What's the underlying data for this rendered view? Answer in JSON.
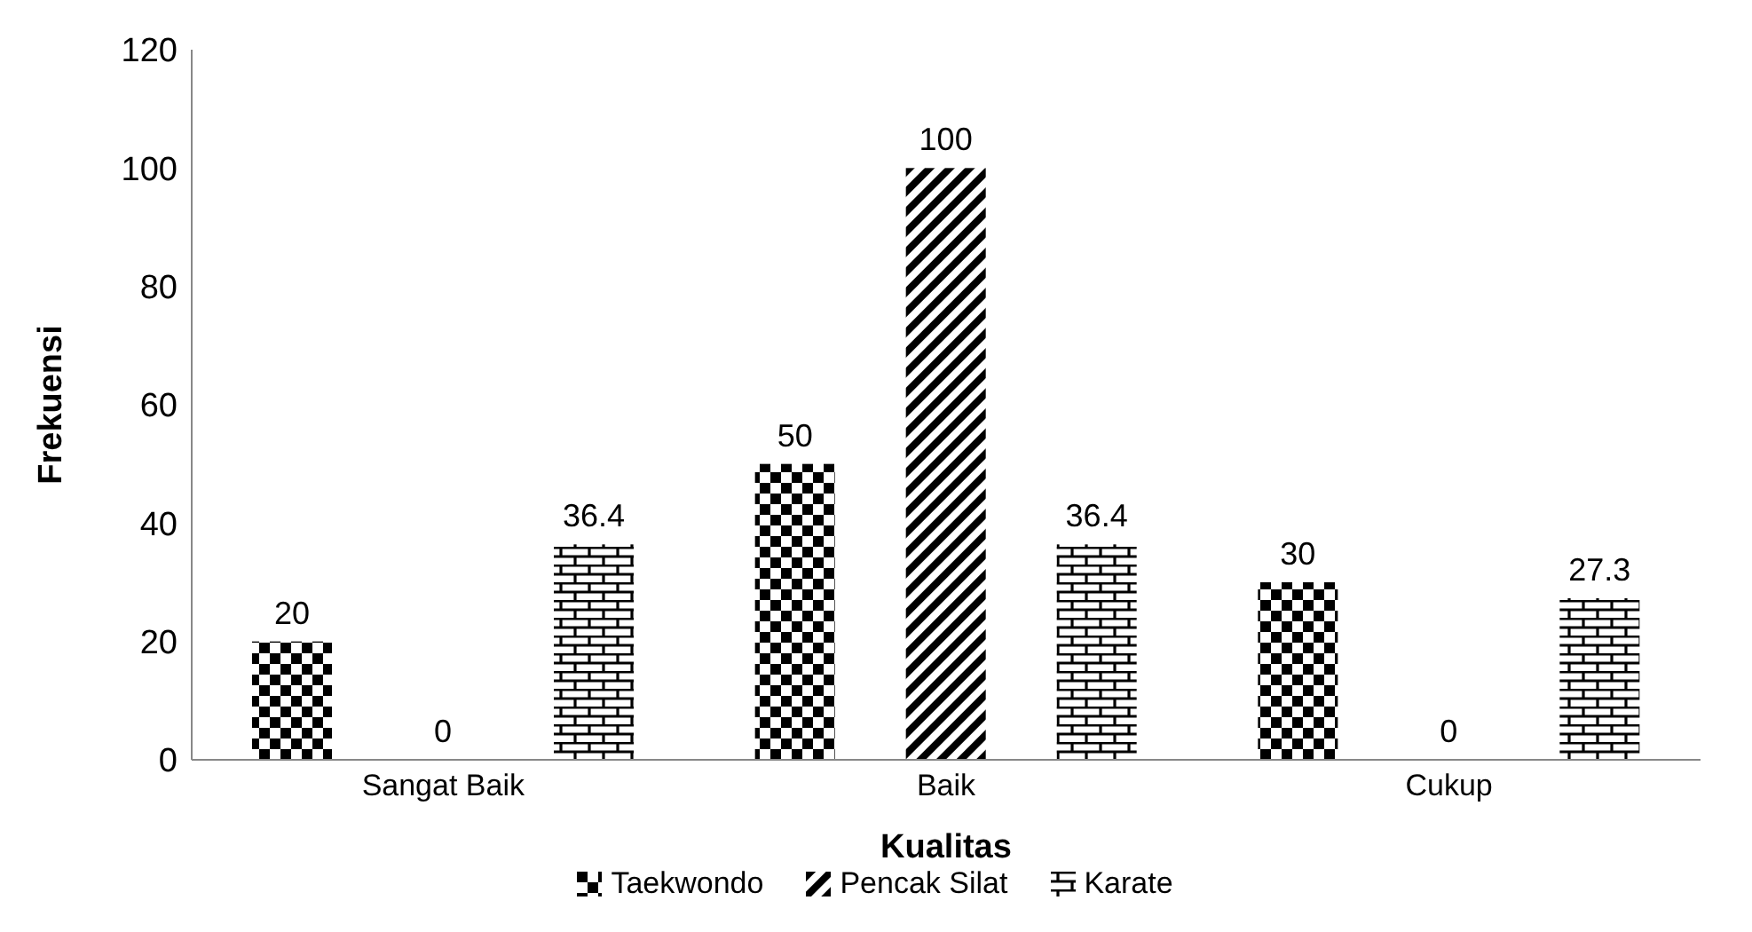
{
  "chart_data": {
    "type": "bar",
    "xlabel": "Kualitas",
    "ylabel": "Frekuensi",
    "categories": [
      "Sangat Baik",
      "Baik",
      "Cukup"
    ],
    "series": [
      {
        "name": "Taekwondo",
        "color": "#000000",
        "values": [
          20,
          50,
          30
        ]
      },
      {
        "name": "Pencak Silat",
        "color": "#000000",
        "values": [
          0,
          100,
          0
        ]
      },
      {
        "name": "Karate",
        "color": "#000000",
        "values": [
          36.4,
          36.4,
          27.3
        ]
      }
    ],
    "ylim": [
      0,
      120
    ],
    "yticks": [
      0,
      20,
      40,
      60,
      80,
      100,
      120
    ],
    "legend": "bottom",
    "data_labels": true
  }
}
